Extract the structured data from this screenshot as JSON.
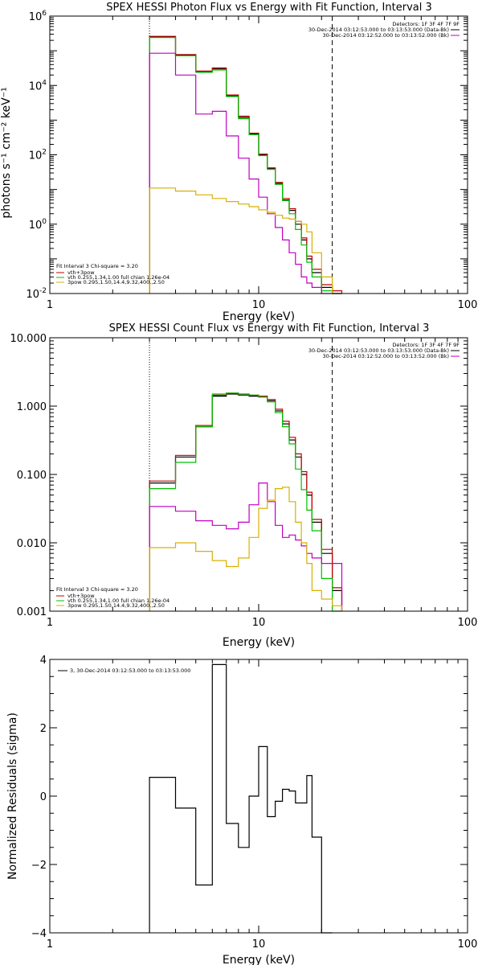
{
  "chart_data": [
    {
      "type": "line",
      "title": "SPEX HESSI Photon Flux vs Energy with Fit Function, Interval 3",
      "xlabel": "Energy (keV)",
      "ylabel": "photons s⁻¹ cm⁻² keV⁻¹",
      "xscale": "log",
      "yscale": "log",
      "xlim": [
        1,
        100
      ],
      "ylim": [
        0.01,
        1000000
      ],
      "x_ticks": [
        {
          "v": 1,
          "label": "1"
        },
        {
          "v": 10,
          "label": "10"
        },
        {
          "v": 100,
          "label": "100"
        }
      ],
      "y_ticks": [
        {
          "v": 0.01,
          "base": "10",
          "exp": "-2"
        },
        {
          "v": 1,
          "base": "10",
          "exp": "0"
        },
        {
          "v": 100,
          "base": "10",
          "exp": "2"
        },
        {
          "v": 10000,
          "base": "10",
          "exp": "4"
        },
        {
          "v": 1000000,
          "base": "10",
          "exp": "6"
        }
      ],
      "vlines": [
        {
          "x": 3.0,
          "style": "dotted"
        },
        {
          "x": 22.5,
          "style": "dashed"
        }
      ],
      "legend_top_right": {
        "header": "Detectors: 1F 3F 4F 7F 9F",
        "entries": [
          {
            "text": "30-Dec-2014 03:12:53.000 to 03:13:53.000 (Data-Bk)",
            "color": "#000000"
          },
          {
            "text": "30-Dec-2014 03:12:52.000 to 03:13:52.000 (Bk)",
            "color": "#c000c0"
          }
        ]
      },
      "legend_bottom_left": {
        "header": "Fit Interval 3   Chi-square = 3.20",
        "entries": [
          {
            "text": "vth+3pow",
            "color": "#c00000"
          },
          {
            "text": "vth 0.255,1.34,1.00  full chian 1.26e-04",
            "color": "#00c000"
          },
          {
            "text": "3pow 0.295,1.50,14.4,9.32,400.,2.50",
            "color": "#d8b000"
          }
        ]
      },
      "edges": [
        3.0,
        3.5,
        4.0,
        5.0,
        6.0,
        7.0,
        8.0,
        9.0,
        10.0,
        11.0,
        12.0,
        13.0,
        14.0,
        15.0,
        16.0,
        17.0,
        18.0,
        20.0,
        22.5,
        25.0
      ],
      "series": [
        {
          "color": "#000000",
          "values": [
            250000,
            250000,
            75000,
            25000,
            30000,
            5000,
            1200,
            400,
            100,
            40,
            15,
            5,
            2.5,
            1.0,
            0.35,
            0.1,
            0.04,
            0.015,
            0.009
          ]
        },
        {
          "color": "#c00000",
          "values": [
            260000,
            260000,
            78000,
            26000,
            32000,
            5300,
            1300,
            420,
            105,
            42,
            16,
            5.5,
            2.8,
            1.2,
            0.4,
            0.12,
            0.05,
            0.018,
            0.012
          ]
        },
        {
          "color": "#00c000",
          "values": [
            240000,
            240000,
            72000,
            24000,
            28000,
            4800,
            1100,
            380,
            95,
            38,
            14,
            4.8,
            2.0,
            0.7,
            0.25,
            0.08,
            0.03,
            0.012,
            0.005
          ]
        },
        {
          "color": "#c000c0",
          "values": [
            85000,
            85000,
            20000,
            1500,
            1800,
            350,
            80,
            20,
            6,
            2.0,
            0.8,
            0.35,
            0.15,
            0.07,
            0.03,
            0.02,
            0.015,
            0.01,
            0.008
          ]
        },
        {
          "color": "#d8b000",
          "values": [
            11,
            11,
            9,
            7,
            5.5,
            4.5,
            3.8,
            3.2,
            2.6,
            2.2,
            1.8,
            1.5,
            1.4,
            1.2,
            1.0,
            0.6,
            0.15,
            0.03,
            0.008
          ]
        }
      ]
    },
    {
      "type": "line",
      "title": "SPEX HESSI Count Flux vs Energy with Fit Function, Interval 3",
      "xlabel": "Energy (keV)",
      "ylabel": "",
      "xscale": "log",
      "yscale": "log",
      "xlim": [
        1,
        100
      ],
      "ylim": [
        0.001,
        10
      ],
      "x_ticks": [
        {
          "v": 1,
          "label": "1"
        },
        {
          "v": 10,
          "label": "10"
        },
        {
          "v": 100,
          "label": "100"
        }
      ],
      "y_ticks": [
        {
          "v": 0.001,
          "label": "0.001"
        },
        {
          "v": 0.01,
          "label": "0.010"
        },
        {
          "v": 0.1,
          "label": "0.100"
        },
        {
          "v": 1,
          "label": "1.000"
        },
        {
          "v": 10,
          "label": "10.000"
        }
      ],
      "vlines": [
        {
          "x": 3.0,
          "style": "dotted"
        },
        {
          "x": 22.5,
          "style": "dashed"
        }
      ],
      "legend_top_right": {
        "header": "Detectors: 1F 3F 4F 7F 9F",
        "entries": [
          {
            "text": "30-Dec-2014 03:12:53.000 to 03:13:53.000 (Data-Bk)",
            "color": "#000000"
          },
          {
            "text": "30-Dec-2014 03:12:52.000 to 03:13:52.000 (Bk)",
            "color": "#c000c0"
          }
        ]
      },
      "legend_bottom_left": {
        "header": "Fit Interval 3   Chi-square = 3.20",
        "entries": [
          {
            "text": "vth+3pow",
            "color": "#c00000"
          },
          {
            "text": "vth 0.255,1.34,1.00  full chian 1.26e-04",
            "color": "#00c000"
          },
          {
            "text": "3pow 0.295,1.50,14.4,9.32,400.,2.50",
            "color": "#d8b000"
          }
        ]
      },
      "edges": [
        3.0,
        4.0,
        5.0,
        6.0,
        7.0,
        8.0,
        9.0,
        10.0,
        11.0,
        12.0,
        13.0,
        14.0,
        15.0,
        16.0,
        17.0,
        18.0,
        20.0,
        22.5,
        25.0
      ],
      "series": [
        {
          "color": "#000000",
          "values": [
            0.075,
            0.18,
            0.5,
            1.4,
            1.5,
            1.45,
            1.4,
            1.35,
            1.2,
            0.85,
            0.55,
            0.32,
            0.18,
            0.1,
            0.05,
            0.02,
            0.007,
            0.002
          ]
        },
        {
          "color": "#c00000",
          "values": [
            0.08,
            0.19,
            0.52,
            1.45,
            1.55,
            1.5,
            1.45,
            1.4,
            1.25,
            0.9,
            0.6,
            0.35,
            0.2,
            0.11,
            0.055,
            0.022,
            0.008,
            0.0022
          ]
        },
        {
          "color": "#00c000",
          "values": [
            0.062,
            0.15,
            0.5,
            1.5,
            1.55,
            1.5,
            1.45,
            1.35,
            1.15,
            0.8,
            0.5,
            0.28,
            0.12,
            0.06,
            0.03,
            0.015,
            0.003,
            0.001
          ]
        },
        {
          "color": "#c000c0",
          "values": [
            0.034,
            0.029,
            0.021,
            0.018,
            0.016,
            0.02,
            0.036,
            0.075,
            0.04,
            0.018,
            0.012,
            0.013,
            0.011,
            0.009,
            0.007,
            0.006,
            0.005,
            0.005
          ]
        },
        {
          "color": "#d8b000",
          "values": [
            0.0085,
            0.01,
            0.0075,
            0.0055,
            0.0045,
            0.006,
            0.012,
            0.032,
            0.042,
            0.062,
            0.065,
            0.04,
            0.02,
            0.01,
            0.005,
            0.002,
            0.0015,
            0.0012
          ]
        }
      ]
    },
    {
      "type": "line",
      "title": "",
      "xlabel": "Energy (keV)",
      "ylabel": "Normalized Residuals (sigma)",
      "xscale": "log",
      "yscale": "linear",
      "xlim": [
        1,
        100
      ],
      "ylim": [
        -4,
        4
      ],
      "x_ticks": [
        {
          "v": 1,
          "label": "1"
        },
        {
          "v": 10,
          "label": "10"
        },
        {
          "v": 100,
          "label": "100"
        }
      ],
      "y_ticks": [
        {
          "v": -4,
          "label": "−4"
        },
        {
          "v": -2,
          "label": "−2"
        },
        {
          "v": 0,
          "label": "0"
        },
        {
          "v": 2,
          "label": "2"
        },
        {
          "v": 4,
          "label": "4"
        }
      ],
      "legend_top_left": {
        "entries": [
          {
            "text": "3, 30-Dec-2014 03:12:53.000 to 03:13:53.000",
            "color": "#000000"
          }
        ]
      },
      "edges": [
        3.0,
        4.0,
        5.0,
        6.0,
        7.0,
        8.0,
        9.0,
        10.0,
        11.0,
        12.0,
        13.0,
        14.0,
        15.0,
        16.0,
        17.0,
        18.0,
        20.0,
        22.5
      ],
      "series": [
        {
          "color": "#000000",
          "values": [
            0.55,
            -0.35,
            -2.6,
            3.85,
            -0.8,
            -1.5,
            0.0,
            1.45,
            -0.6,
            -0.15,
            0.2,
            0.15,
            -0.2,
            -0.2,
            0.6,
            -1.2,
            -4.0
          ],
          "baseline": -4
        }
      ]
    }
  ]
}
